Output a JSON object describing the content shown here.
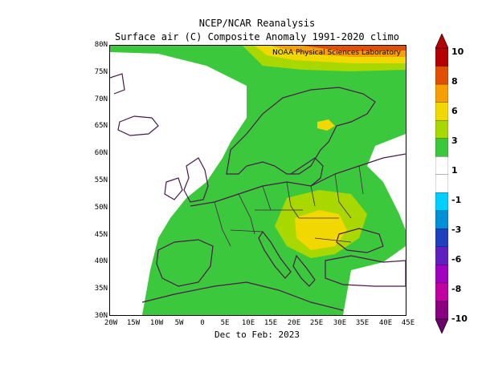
{
  "header": {
    "title": "NCEP/NCAR Reanalysis",
    "subtitle": "Surface air (C) Composite Anomaly 1991-2020 climo"
  },
  "map": {
    "credit": "NOAA Physical Sciences Laboratory",
    "period_label": "Dec to Feb: 2023",
    "region": "Europe",
    "projection": "lat-lon",
    "lat_range": [
      30,
      80
    ],
    "lon_range": [
      -20,
      45
    ],
    "y_ticks": [
      "80N",
      "75N",
      "70N",
      "65N",
      "60N",
      "55N",
      "50N",
      "45N",
      "40N",
      "35N",
      "30N"
    ],
    "x_ticks": [
      "20W",
      "15W",
      "10W",
      "5W",
      "0",
      "5E",
      "10E",
      "15E",
      "20E",
      "25E",
      "30E",
      "35E",
      "40E",
      "45E"
    ],
    "anomaly_features": [
      {
        "area": "Central/Eastern Europe (Hungary, Romania)",
        "value_range": "3 to 6"
      },
      {
        "area": "Arctic north of Scandinavia (~80N)",
        "value_range": "6 to 10"
      },
      {
        "area": "Scandinavia / Baltic",
        "value_range": "1 to 3"
      },
      {
        "area": "North Atlantic west of Europe",
        "value_range": "-1 to 1"
      }
    ]
  },
  "colorbar": {
    "labels": [
      "10",
      "8",
      "6",
      "3",
      "1",
      "-1",
      "-3",
      "-6",
      "-8",
      "-10"
    ],
    "colors": [
      "#b40000",
      "#e05000",
      "#f5a000",
      "#f0d800",
      "#a8d800",
      "#3cc83c",
      "#ffffff",
      "#ffffff",
      "#00d0ff",
      "#0090d8",
      "#2040c0",
      "#6020c0",
      "#a000c0",
      "#c000a0",
      "#8a0080"
    ]
  }
}
